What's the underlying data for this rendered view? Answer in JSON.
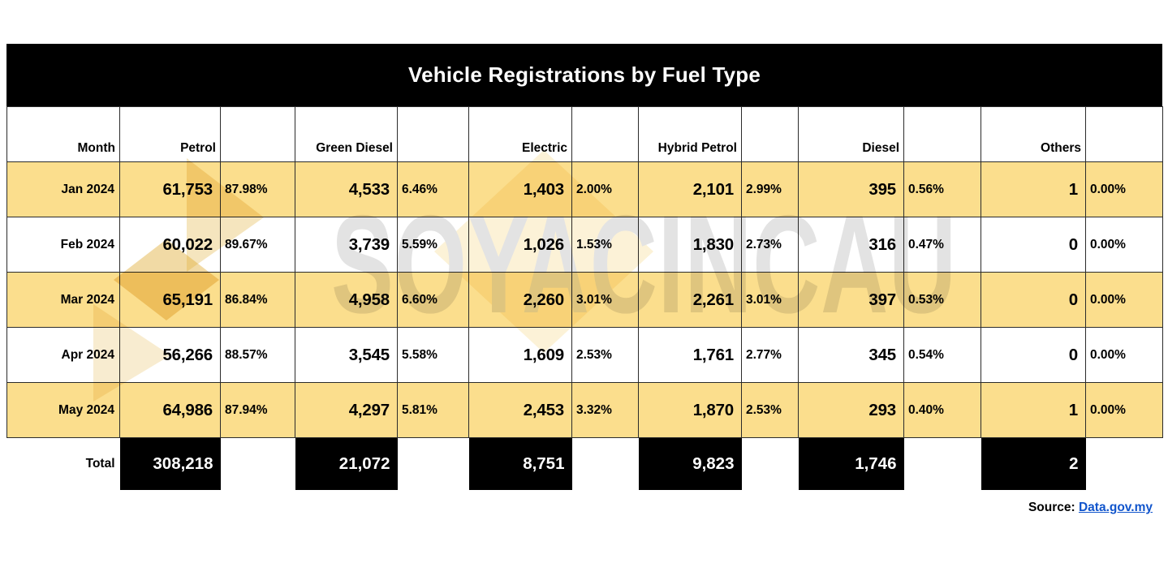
{
  "title": "Vehicle Registrations by Fuel Type",
  "month_header": "Month",
  "total_label": "Total",
  "columns": [
    {
      "key": "petrol",
      "label": "Petrol"
    },
    {
      "key": "green_diesel",
      "label": "Green Diesel"
    },
    {
      "key": "electric",
      "label": "Electric"
    },
    {
      "key": "hybrid_petrol",
      "label": "Hybrid Petrol"
    },
    {
      "key": "diesel",
      "label": "Diesel"
    },
    {
      "key": "others",
      "label": "Others"
    }
  ],
  "rows": [
    {
      "month": "Jan 2024",
      "shaded": true,
      "electric_highlight": true,
      "cells": [
        [
          "61,753",
          "87.98%"
        ],
        [
          "4,533",
          "6.46%"
        ],
        [
          "1,403",
          "2.00%"
        ],
        [
          "2,101",
          "2.99%"
        ],
        [
          "395",
          "0.56%"
        ],
        [
          "1",
          "0.00%"
        ]
      ]
    },
    {
      "month": "Feb 2024",
      "shaded": false,
      "electric_highlight": false,
      "cells": [
        [
          "60,022",
          "89.67%"
        ],
        [
          "3,739",
          "5.59%"
        ],
        [
          "1,026",
          "1.53%"
        ],
        [
          "1,830",
          "2.73%"
        ],
        [
          "316",
          "0.47%"
        ],
        [
          "0",
          "0.00%"
        ]
      ]
    },
    {
      "month": "Mar 2024",
      "shaded": true,
      "electric_highlight": true,
      "cells": [
        [
          "65,191",
          "86.84%"
        ],
        [
          "4,958",
          "6.60%"
        ],
        [
          "2,260",
          "3.01%"
        ],
        [
          "2,261",
          "3.01%"
        ],
        [
          "397",
          "0.53%"
        ],
        [
          "0",
          "0.00%"
        ]
      ]
    },
    {
      "month": "Apr 2024",
      "shaded": false,
      "electric_highlight": false,
      "cells": [
        [
          "56,266",
          "88.57%"
        ],
        [
          "3,545",
          "5.58%"
        ],
        [
          "1,609",
          "2.53%"
        ],
        [
          "1,761",
          "2.77%"
        ],
        [
          "345",
          "0.54%"
        ],
        [
          "0",
          "0.00%"
        ]
      ]
    },
    {
      "month": "May 2024",
      "shaded": true,
      "electric_highlight": true,
      "cells": [
        [
          "64,986",
          "87.94%"
        ],
        [
          "4,297",
          "5.81%"
        ],
        [
          "2,453",
          "3.32%"
        ],
        [
          "1,870",
          "2.53%"
        ],
        [
          "293",
          "0.40%"
        ],
        [
          "1",
          "0.00%"
        ]
      ]
    }
  ],
  "totals": [
    "308,218",
    "21,072",
    "8,751",
    "9,823",
    "1,746",
    "2"
  ],
  "source": {
    "label": "Source:",
    "link_text": "Data.gov.my"
  },
  "watermark": {
    "text": "SOYACINCAU"
  },
  "colors": {
    "row_shade": "#FBDE8D",
    "electric_highlight": "#F0A55F",
    "title_bar": "#000000",
    "total_cell_bg": "#000000",
    "total_cell_text": "#FFFFFF",
    "link": "#1155CC",
    "grid": "#2B2B2B"
  },
  "chart_data": {
    "type": "table",
    "title": "Vehicle Registrations by Fuel Type",
    "categories": [
      "Jan 2024",
      "Feb 2024",
      "Mar 2024",
      "Apr 2024",
      "May 2024"
    ],
    "series": [
      {
        "name": "Petrol",
        "values": [
          61753,
          60022,
          65191,
          56266,
          64986
        ],
        "share_pct": [
          87.98,
          89.67,
          86.84,
          88.57,
          87.94
        ],
        "total": 308218
      },
      {
        "name": "Green Diesel",
        "values": [
          4533,
          3739,
          4958,
          3545,
          4297
        ],
        "share_pct": [
          6.46,
          5.59,
          6.6,
          5.58,
          5.81
        ],
        "total": 21072
      },
      {
        "name": "Electric",
        "values": [
          1403,
          1026,
          2260,
          1609,
          2453
        ],
        "share_pct": [
          2.0,
          1.53,
          3.01,
          2.53,
          3.32
        ],
        "total": 8751
      },
      {
        "name": "Hybrid Petrol",
        "values": [
          2101,
          1830,
          2261,
          1761,
          1870
        ],
        "share_pct": [
          2.99,
          2.73,
          3.01,
          2.77,
          2.53
        ],
        "total": 9823
      },
      {
        "name": "Diesel",
        "values": [
          395,
          316,
          397,
          345,
          293
        ],
        "share_pct": [
          0.56,
          0.47,
          0.53,
          0.54,
          0.4
        ],
        "total": 1746
      },
      {
        "name": "Others",
        "values": [
          1,
          0,
          0,
          0,
          1
        ],
        "share_pct": [
          0.0,
          0.0,
          0.0,
          0.0,
          0.0
        ],
        "total": 2
      }
    ],
    "highlighted_cells": "Electric column in Jan/Mar/May 2024 rows (orange)",
    "source": "Data.gov.my"
  }
}
